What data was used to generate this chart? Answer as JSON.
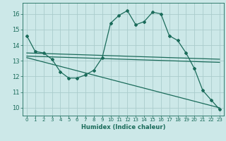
{
  "title": "",
  "xlabel": "Humidex (Indice chaleur)",
  "ylabel": "",
  "xlim": [
    -0.5,
    23.5
  ],
  "ylim": [
    9.5,
    16.7
  ],
  "yticks": [
    10,
    11,
    12,
    13,
    14,
    15,
    16
  ],
  "xticks": [
    0,
    1,
    2,
    3,
    4,
    5,
    6,
    7,
    8,
    9,
    10,
    11,
    12,
    13,
    14,
    15,
    16,
    17,
    18,
    19,
    20,
    21,
    22,
    23
  ],
  "bg_color": "#cce8e8",
  "grid_color": "#aacccc",
  "line_color": "#1a6b5a",
  "line1_x": [
    0,
    1,
    2,
    3,
    4,
    5,
    6,
    7,
    8,
    9,
    10,
    11,
    12,
    13,
    14,
    15,
    16,
    17,
    18,
    19,
    20,
    21,
    22,
    23
  ],
  "line1_y": [
    14.6,
    13.6,
    13.5,
    13.1,
    12.3,
    11.9,
    11.9,
    12.1,
    12.4,
    13.2,
    15.4,
    15.9,
    16.2,
    15.3,
    15.5,
    16.1,
    16.0,
    14.6,
    14.3,
    13.5,
    12.5,
    11.1,
    10.5,
    9.9
  ],
  "line2_x": [
    0,
    23
  ],
  "line2_y": [
    13.3,
    12.9
  ],
  "line3_x": [
    0,
    23
  ],
  "line3_y": [
    13.5,
    13.1
  ],
  "line4_x": [
    0,
    23
  ],
  "line4_y": [
    13.2,
    10.0
  ],
  "marker_style": "D",
  "markersize": 2.0,
  "linewidth": 0.9,
  "tick_fontsize": 5.0,
  "xlabel_fontsize": 6.0
}
